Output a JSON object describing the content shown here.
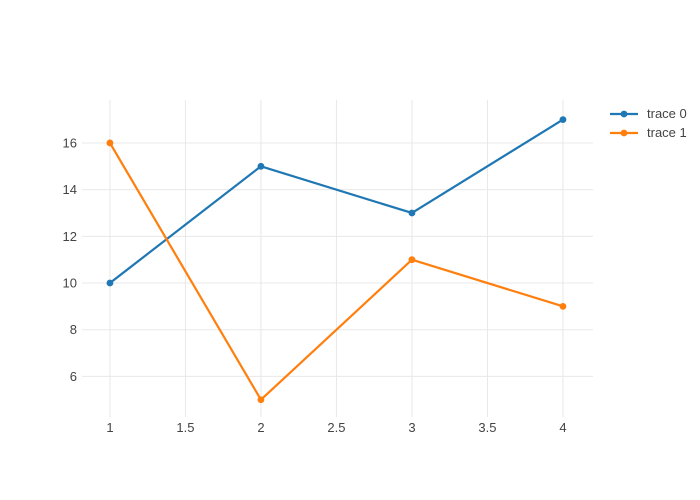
{
  "chart_data": {
    "type": "line",
    "mode": "lines+markers",
    "title": "",
    "xlabel": "",
    "ylabel": "",
    "x": [
      1,
      2,
      3,
      4
    ],
    "series": [
      {
        "name": "trace 0",
        "color": "#1f77b4",
        "values": [
          10,
          15,
          13,
          17
        ]
      },
      {
        "name": "trace 1",
        "color": "#ff7f0e",
        "values": [
          16,
          5,
          11,
          9
        ]
      }
    ],
    "x_tick_values": [
      1,
      1.5,
      2,
      2.5,
      3,
      3.5,
      4
    ],
    "x_tick_labels": [
      "1",
      "1.5",
      "2",
      "2.5",
      "3",
      "3.5",
      "4"
    ],
    "y_tick_values": [
      6,
      8,
      10,
      12,
      14,
      16
    ],
    "y_tick_labels": [
      "6",
      "8",
      "10",
      "12",
      "14",
      "16"
    ],
    "xlim": [
      0.815,
      4.199
    ],
    "ylim": [
      4.26,
      17.84
    ],
    "grid": true,
    "legend_position": "right-top"
  },
  "colors": {
    "background": "#ffffff",
    "gridline": "#e8e8e8",
    "tick_label": "#444444",
    "legend_text": "#444444"
  }
}
